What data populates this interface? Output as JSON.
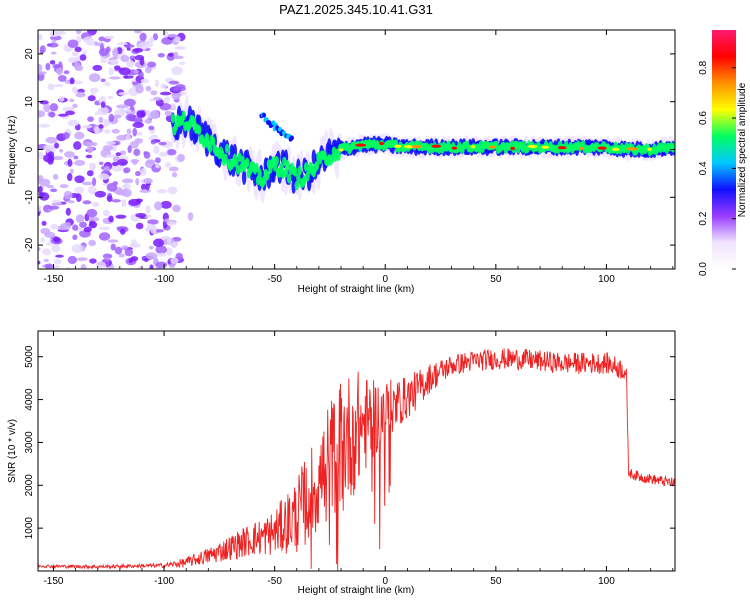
{
  "chart_data": [
    {
      "type": "heatmap",
      "title": "PAZ1.2025.345.10.41.G31",
      "xlabel": "Height of straight line (km)",
      "ylabel": "Frequency (Hz)",
      "xlim": [
        -157,
        131
      ],
      "ylim": [
        -25,
        25
      ],
      "xticks": [
        -150,
        -100,
        -50,
        0,
        50,
        100
      ],
      "xtick_labels": [
        "-150",
        "-100",
        "-50",
        "0",
        "50",
        "100"
      ],
      "yticks": [
        20,
        10,
        0,
        -10,
        -20
      ],
      "ytick_labels": [
        "20",
        "10",
        "0",
        "-10",
        "-20"
      ],
      "colorbar": {
        "label": "Normalized spectral amplitude",
        "range": [
          0,
          0.95
        ],
        "ticks": [
          0.0,
          0.2,
          0.4,
          0.6,
          0.8
        ],
        "tick_labels": [
          "0.0",
          "0.2",
          "0.4",
          "0.6",
          "0.8"
        ],
        "colors": [
          "#ffffff",
          "#f0e4ff",
          "#9a3cff",
          "#1010ff",
          "#00c8ff",
          "#00ff60",
          "#ffff00",
          "#ff9000",
          "#ff0000",
          "#ff1a70"
        ]
      },
      "ridge": {
        "x": [
          -96,
          -90,
          -85,
          -80,
          -75,
          -70,
          -65,
          -60,
          -55,
          -50,
          -45,
          -40,
          -35,
          -30,
          -25,
          -20,
          -10,
          0,
          10,
          20,
          40,
          60,
          80,
          100,
          110,
          120,
          131
        ],
        "y": [
          5,
          6,
          4,
          2,
          0,
          -2,
          -3,
          -5,
          -6,
          -3,
          -4,
          -6,
          -5,
          -3,
          -1,
          0,
          1,
          1,
          0.5,
          0.5,
          0.5,
          0.5,
          0.5,
          0.5,
          0,
          0,
          0.5
        ]
      },
      "noise_region_x": [
        -157,
        -92
      ]
    },
    {
      "type": "line",
      "title": "",
      "xlabel": "Height of straight line (km)",
      "ylabel": "SNR (10 * v/v)",
      "xlim": [
        -157,
        131
      ],
      "ylim": [
        0,
        5600
      ],
      "xticks": [
        -150,
        -100,
        -50,
        0,
        50,
        100
      ],
      "xtick_labels": [
        "-150",
        "-100",
        "-50",
        "0",
        "50",
        "100"
      ],
      "yticks": [
        1000,
        2000,
        3000,
        4000,
        5000
      ],
      "ytick_labels": [
        "1000",
        "2000",
        "3000",
        "4000",
        "5000"
      ],
      "series": [
        {
          "name": "SNR",
          "color": "#ee2222",
          "x": [
            -157,
            -150,
            -130,
            -110,
            -100,
            -95,
            -90,
            -85,
            -80,
            -75,
            -70,
            -65,
            -60,
            -55,
            -50,
            -45,
            -40,
            -35,
            -30,
            -25,
            -20,
            -15,
            -12,
            -10,
            -5,
            0,
            5,
            10,
            15,
            20,
            25,
            30,
            35,
            40,
            50,
            60,
            70,
            80,
            90,
            100,
            105,
            108,
            109,
            110,
            112,
            115,
            120,
            125,
            131
          ],
          "values": [
            120,
            110,
            100,
            120,
            130,
            160,
            200,
            280,
            350,
            450,
            550,
            650,
            750,
            800,
            900,
            1100,
            1300,
            1700,
            2100,
            2600,
            3000,
            3200,
            3300,
            3400,
            3550,
            3750,
            3900,
            4050,
            4250,
            4500,
            4650,
            4800,
            4850,
            4900,
            4950,
            4950,
            4900,
            4850,
            4850,
            4850,
            4750,
            4700,
            4600,
            2300,
            2250,
            2200,
            2150,
            2100,
            2050
          ],
          "noise": [
            30,
            40,
            40,
            40,
            50,
            80,
            120,
            150,
            200,
            250,
            300,
            350,
            400,
            450,
            550,
            700,
            900,
            1100,
            1200,
            1400,
            1500,
            1500,
            1400,
            1200,
            900,
            700,
            600,
            500,
            450,
            350,
            300,
            250,
            250,
            250,
            250,
            250,
            250,
            250,
            250,
            250,
            250,
            250,
            250,
            120,
            120,
            120,
            120,
            120,
            120
          ]
        }
      ]
    }
  ]
}
